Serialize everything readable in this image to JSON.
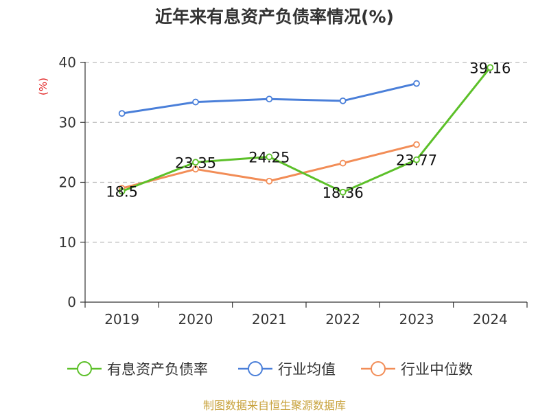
{
  "chart_data": {
    "type": "line",
    "title": "近年来有息资产负债率情况(%)",
    "ylabel": "(%)",
    "xlabel": "",
    "categories": [
      "2019",
      "2020",
      "2021",
      "2022",
      "2023",
      "2024"
    ],
    "ylim": [
      0,
      40
    ],
    "yticks": [
      0,
      10,
      20,
      30,
      40
    ],
    "grid": true,
    "legend_position": "bottom",
    "series": [
      {
        "name": "有息资产负债率",
        "color": "#5cc029",
        "values": [
          18.5,
          23.35,
          24.25,
          18.36,
          23.77,
          39.16
        ],
        "labels": [
          "18.5",
          "23.35",
          "24.25",
          "18.36",
          "23.77",
          "39.16"
        ]
      },
      {
        "name": "行业均值",
        "color": "#4a7fd9",
        "values": [
          31.5,
          33.4,
          33.9,
          33.6,
          36.5,
          null
        ]
      },
      {
        "name": "行业中位数",
        "color": "#f28d57",
        "values": [
          19.0,
          22.2,
          20.2,
          23.2,
          26.3,
          null
        ]
      }
    ]
  },
  "colors": {
    "axis": "#333333",
    "grid": "#bbbbbb",
    "unit": "#e02020",
    "source": "#c8a23c"
  },
  "source": "制图数据来自恒生聚源数据库"
}
